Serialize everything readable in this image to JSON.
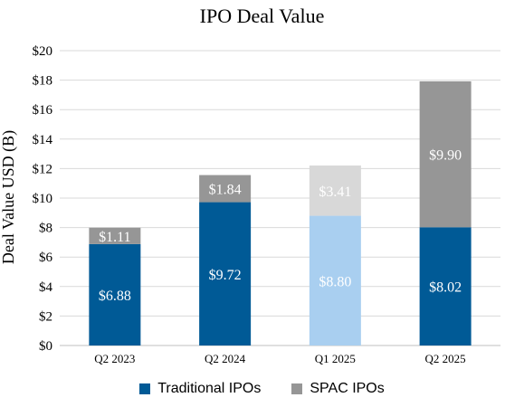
{
  "chart_data": {
    "type": "bar",
    "stacked": true,
    "title": "IPO Deal Value",
    "ylabel": "Deal Value USD (B)",
    "xlabel": "",
    "ylim": [
      0,
      20
    ],
    "ytick_step": 2,
    "ytick_labels": [
      "$0",
      "$2",
      "$4",
      "$6",
      "$8",
      "$10",
      "$12",
      "$14",
      "$16",
      "$18",
      "$20"
    ],
    "grid": true,
    "legend_position": "bottom",
    "categories": [
      "Q2 2023",
      "Q2 2024",
      "Q1 2025",
      "Q2 2025"
    ],
    "series": [
      {
        "name": "Traditional IPOs",
        "values": [
          6.88,
          9.72,
          8.8,
          8.02
        ],
        "labels": [
          "$6.88",
          "$9.72",
          "$8.80",
          "$8.02"
        ],
        "colors": [
          "#005A96",
          "#005A96",
          "#A9CFF0",
          "#005A96"
        ]
      },
      {
        "name": "SPAC IPOs",
        "values": [
          1.11,
          1.84,
          3.41,
          9.9
        ],
        "labels": [
          "$1.11",
          "$1.84",
          "$3.41",
          "$9.90"
        ],
        "colors": [
          "#969696",
          "#969696",
          "#D8D8D8",
          "#969696"
        ]
      }
    ],
    "legend_colors": [
      "#005A96",
      "#969696"
    ]
  }
}
